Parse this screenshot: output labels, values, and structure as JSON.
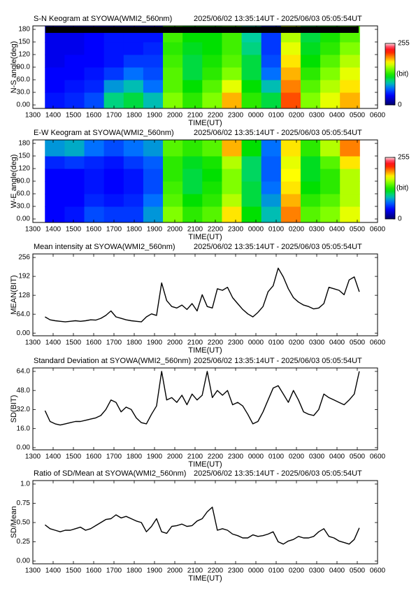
{
  "chart_data": [
    {
      "type": "heatmap",
      "title": "S-N Keogram at SYOWA(WMI2_560nm)",
      "subtitle": "2025/06/02 13:35:14UT - 2025/06/03 05:05:54UT",
      "x_label": "TIME(UT)",
      "y_label": "N-S angle(deg)",
      "xlim": [
        13,
        30
      ],
      "xticks": [
        {
          "value": 13,
          "label": "1300"
        },
        {
          "value": 14,
          "label": "1400"
        },
        {
          "value": 15,
          "label": "1500"
        },
        {
          "value": 16,
          "label": "1600"
        },
        {
          "value": 17,
          "label": "1700"
        },
        {
          "value": 18,
          "label": "1800"
        },
        {
          "value": 19,
          "label": "1900"
        },
        {
          "value": 20,
          "label": "2000"
        },
        {
          "value": 21,
          "label": "2100"
        },
        {
          "value": 22,
          "label": "2200"
        },
        {
          "value": 23,
          "label": "2300"
        },
        {
          "value": 24,
          "label": "0000"
        },
        {
          "value": 25,
          "label": "0100"
        },
        {
          "value": 26,
          "label": "0200"
        },
        {
          "value": 27,
          "label": "0300"
        },
        {
          "value": 28,
          "label": "0400"
        },
        {
          "value": 29,
          "label": "0500"
        },
        {
          "value": 30,
          "label": "0600"
        }
      ],
      "ylim": [
        -8.3,
        188.3
      ],
      "yticks": [
        {
          "value": 0,
          "label": "0.00"
        },
        {
          "value": 30,
          "label": "30.0"
        },
        {
          "value": 60,
          "label": "60.0"
        },
        {
          "value": 90,
          "label": "90.0"
        },
        120,
        150,
        180
      ],
      "x": [
        14.08,
        15.05,
        16.02,
        16.99,
        17.96,
        18.93,
        19.9,
        20.87,
        21.84,
        22.81,
        23.78,
        24.75,
        25.72,
        26.69,
        27.66,
        28.63
      ],
      "y": [
        15,
        45,
        75,
        105,
        135,
        165
      ],
      "z": [
        [
          45,
          50,
          60,
          100,
          110,
          90,
          150,
          130,
          150,
          190,
          130,
          110,
          210,
          150,
          170,
          190
        ],
        [
          40,
          45,
          50,
          80,
          90,
          70,
          140,
          120,
          140,
          170,
          120,
          90,
          200,
          140,
          160,
          180
        ],
        [
          40,
          40,
          45,
          55,
          70,
          60,
          140,
          110,
          130,
          150,
          110,
          70,
          190,
          130,
          150,
          170
        ],
        [
          35,
          40,
          40,
          45,
          55,
          55,
          135,
          110,
          125,
          140,
          110,
          60,
          180,
          120,
          140,
          160
        ],
        [
          35,
          35,
          40,
          45,
          45,
          50,
          130,
          115,
          120,
          135,
          100,
          55,
          170,
          115,
          130,
          150
        ],
        [
          35,
          35,
          40,
          45,
          45,
          45,
          135,
          120,
          120,
          135,
          95,
          55,
          160,
          110,
          125,
          140
        ]
      ],
      "zlim": [
        0,
        255
      ],
      "zticks": [
        0,
        255
      ],
      "colorbar_label": "(bit)"
    },
    {
      "type": "heatmap",
      "title": "E-W Keogram at SYOWA(WMI2_560nm)",
      "subtitle": "2025/06/02 13:35:14UT - 2025/06/03 05:05:54UT",
      "x_label": "TIME(UT)",
      "y_label": "W-E angle(deg)",
      "xlim": [
        13,
        30
      ],
      "xticks": [
        {
          "value": 13,
          "label": "1300"
        },
        {
          "value": 14,
          "label": "1400"
        },
        {
          "value": 15,
          "label": "1500"
        },
        {
          "value": 16,
          "label": "1600"
        },
        {
          "value": 17,
          "label": "1700"
        },
        {
          "value": 18,
          "label": "1800"
        },
        {
          "value": 19,
          "label": "1900"
        },
        {
          "value": 20,
          "label": "2000"
        },
        {
          "value": 21,
          "label": "2100"
        },
        {
          "value": 22,
          "label": "2200"
        },
        {
          "value": 23,
          "label": "2300"
        },
        {
          "value": 24,
          "label": "0000"
        },
        {
          "value": 25,
          "label": "0100"
        },
        {
          "value": 26,
          "label": "0200"
        },
        {
          "value": 27,
          "label": "0300"
        },
        {
          "value": 28,
          "label": "0400"
        },
        {
          "value": 29,
          "label": "0500"
        },
        {
          "value": 30,
          "label": "0600"
        }
      ],
      "ylim": [
        -8.3,
        188.3
      ],
      "yticks": [
        {
          "value": 0,
          "label": "0.00"
        },
        {
          "value": 30,
          "label": "30.0"
        },
        {
          "value": 60,
          "label": "60.0"
        },
        {
          "value": 90,
          "label": "90.0"
        },
        120,
        150,
        180
      ],
      "x": [
        14.08,
        15.05,
        16.02,
        16.99,
        17.96,
        18.93,
        19.9,
        20.87,
        21.84,
        22.81,
        23.78,
        24.75,
        25.72,
        26.69,
        27.66,
        28.63
      ],
      "y": [
        15,
        45,
        75,
        105,
        135,
        165
      ],
      "z": [
        [
          40,
          45,
          60,
          55,
          55,
          80,
          150,
          130,
          140,
          180,
          120,
          90,
          200,
          140,
          150,
          170
        ],
        [
          40,
          40,
          50,
          45,
          50,
          70,
          140,
          120,
          130,
          160,
          110,
          80,
          190,
          130,
          140,
          160
        ],
        [
          40,
          40,
          45,
          40,
          45,
          60,
          135,
          110,
          125,
          150,
          110,
          70,
          180,
          120,
          130,
          160
        ],
        [
          40,
          40,
          45,
          40,
          45,
          60,
          130,
          110,
          120,
          150,
          105,
          65,
          175,
          115,
          130,
          160
        ],
        [
          50,
          55,
          50,
          45,
          55,
          65,
          130,
          115,
          125,
          160,
          105,
          65,
          170,
          115,
          140,
          180
        ],
        [
          80,
          85,
          70,
          60,
          70,
          80,
          140,
          130,
          140,
          190,
          120,
          70,
          180,
          130,
          160,
          200
        ]
      ],
      "zlim": [
        0,
        255
      ],
      "zticks": [
        0,
        255
      ],
      "colorbar_label": "(bit)"
    },
    {
      "type": "line",
      "title": "Mean intensity at SYOWA(WMI2_560nm)",
      "subtitle": "2025/06/02 13:35:14UT - 2025/06/03 05:05:54UT",
      "x_label": "TIME(UT)",
      "y_label": "MEAN(BIT)",
      "color": "#000000",
      "xlim": [
        13,
        30
      ],
      "xticks": [
        {
          "value": 13,
          "label": "1300"
        },
        {
          "value": 14,
          "label": "1400"
        },
        {
          "value": 15,
          "label": "1500"
        },
        {
          "value": 16,
          "label": "1600"
        },
        {
          "value": 17,
          "label": "1700"
        },
        {
          "value": 18,
          "label": "1800"
        },
        {
          "value": 19,
          "label": "1900"
        },
        {
          "value": 20,
          "label": "2000"
        },
        {
          "value": 21,
          "label": "2100"
        },
        {
          "value": 22,
          "label": "2200"
        },
        {
          "value": 23,
          "label": "2300"
        },
        {
          "value": 24,
          "label": "0000"
        },
        {
          "value": 25,
          "label": "0100"
        },
        {
          "value": 26,
          "label": "0200"
        },
        {
          "value": 27,
          "label": "0300"
        },
        {
          "value": 28,
          "label": "0400"
        },
        {
          "value": 29,
          "label": "0500"
        },
        {
          "value": 30,
          "label": "0600"
        }
      ],
      "ylim": [
        -9,
        268
      ],
      "yticks": [
        {
          "value": 0,
          "label": "0.00"
        },
        {
          "value": 64,
          "label": "64.0"
        },
        128,
        192,
        256
      ],
      "x": [
        13.6,
        13.85,
        14.1,
        14.35,
        14.6,
        14.85,
        15.1,
        15.35,
        15.6,
        15.85,
        16.1,
        16.35,
        16.6,
        16.85,
        17.1,
        17.35,
        17.6,
        17.85,
        18.1,
        18.35,
        18.6,
        18.85,
        19.1,
        19.35,
        19.6,
        19.85,
        20.1,
        20.35,
        20.6,
        20.85,
        21.1,
        21.35,
        21.6,
        21.85,
        22.1,
        22.35,
        22.6,
        22.85,
        23.1,
        23.35,
        23.6,
        23.85,
        24.1,
        24.35,
        24.6,
        24.85,
        25.1,
        25.35,
        25.6,
        25.85,
        26.1,
        26.35,
        26.6,
        26.85,
        27.1,
        27.35,
        27.6,
        27.85,
        28.1,
        28.35,
        28.6,
        28.85,
        29.1
      ],
      "values": [
        55,
        45,
        42,
        40,
        38,
        40,
        42,
        40,
        42,
        45,
        44,
        50,
        60,
        75,
        55,
        50,
        45,
        42,
        40,
        38,
        55,
        65,
        60,
        170,
        110,
        90,
        85,
        95,
        80,
        100,
        75,
        130,
        90,
        85,
        150,
        145,
        155,
        120,
        100,
        80,
        65,
        55,
        70,
        90,
        140,
        160,
        220,
        190,
        150,
        120,
        105,
        95,
        90,
        82,
        85,
        100,
        155,
        150,
        145,
        130,
        180,
        190,
        140
      ]
    },
    {
      "type": "line",
      "title": "Standard Deviation at SYOWA(WMI2_560nm)",
      "subtitle": "2025/06/02 13:35:14UT - 2025/06/03 05:05:54UT",
      "x_label": "TIME(UT)",
      "y_label": "SD(BIT)",
      "color": "#000000",
      "xlim": [
        13,
        30
      ],
      "xticks": [
        {
          "value": 13,
          "label": "1300"
        },
        {
          "value": 14,
          "label": "1400"
        },
        {
          "value": 15,
          "label": "1500"
        },
        {
          "value": 16,
          "label": "1600"
        },
        {
          "value": 17,
          "label": "1700"
        },
        {
          "value": 18,
          "label": "1800"
        },
        {
          "value": 19,
          "label": "1900"
        },
        {
          "value": 20,
          "label": "2000"
        },
        {
          "value": 21,
          "label": "2100"
        },
        {
          "value": 22,
          "label": "2200"
        },
        {
          "value": 23,
          "label": "2300"
        },
        {
          "value": 24,
          "label": "0000"
        },
        {
          "value": 25,
          "label": "0100"
        },
        {
          "value": 26,
          "label": "0200"
        },
        {
          "value": 27,
          "label": "0300"
        },
        {
          "value": 28,
          "label": "0400"
        },
        {
          "value": 29,
          "label": "0500"
        },
        {
          "value": 30,
          "label": "0600"
        }
      ],
      "ylim": [
        -1.8,
        66.9
      ],
      "yticks": [
        {
          "value": 0,
          "label": "0.00"
        },
        {
          "value": 16,
          "label": "16.0"
        },
        {
          "value": 32,
          "label": "32.0"
        },
        {
          "value": 48,
          "label": "48.0"
        },
        {
          "value": 64,
          "label": "64.0"
        }
      ],
      "x": [
        13.6,
        13.85,
        14.1,
        14.35,
        14.6,
        14.85,
        15.1,
        15.35,
        15.6,
        15.85,
        16.1,
        16.35,
        16.6,
        16.85,
        17.1,
        17.35,
        17.6,
        17.85,
        18.1,
        18.35,
        18.6,
        18.85,
        19.1,
        19.35,
        19.6,
        19.85,
        20.1,
        20.35,
        20.6,
        20.85,
        21.1,
        21.35,
        21.6,
        21.85,
        22.1,
        22.35,
        22.6,
        22.85,
        23.1,
        23.35,
        23.6,
        23.85,
        24.1,
        24.35,
        24.6,
        24.85,
        25.1,
        25.35,
        25.6,
        25.85,
        26.1,
        26.35,
        26.6,
        26.85,
        27.1,
        27.35,
        27.6,
        27.85,
        28.1,
        28.35,
        28.6,
        28.85,
        29.1
      ],
      "values": [
        31,
        22,
        20,
        19,
        20,
        21,
        22,
        22,
        23,
        24,
        25,
        27,
        32,
        40,
        38,
        30,
        34,
        32,
        25,
        21,
        20,
        28,
        35,
        64,
        40,
        42,
        38,
        44,
        36,
        45,
        40,
        44,
        64,
        42,
        48,
        44,
        48,
        36,
        38,
        35,
        28,
        20,
        22,
        30,
        40,
        50,
        52,
        45,
        38,
        48,
        40,
        30,
        28,
        27,
        32,
        45,
        42,
        40,
        38,
        36,
        40,
        45,
        64
      ]
    },
    {
      "type": "line",
      "title": "Ratio of SD/Mean at SYOWA(WMI2_560nm)",
      "subtitle": "2025/06/02 13:35:14UT - 2025/06/03 05:05:54UT",
      "x_label": "TIME(UT)",
      "y_label": "SD/Mean",
      "color": "#000000",
      "xlim": [
        13,
        30
      ],
      "xticks": [
        {
          "value": 13,
          "label": "1300"
        },
        {
          "value": 14,
          "label": "1400"
        },
        {
          "value": 15,
          "label": "1500"
        },
        {
          "value": 16,
          "label": "1600"
        },
        {
          "value": 17,
          "label": "1700"
        },
        {
          "value": 18,
          "label": "1800"
        },
        {
          "value": 19,
          "label": "1900"
        },
        {
          "value": 20,
          "label": "2000"
        },
        {
          "value": 21,
          "label": "2100"
        },
        {
          "value": 22,
          "label": "2200"
        },
        {
          "value": 23,
          "label": "2300"
        },
        {
          "value": 24,
          "label": "0000"
        },
        {
          "value": 25,
          "label": "0100"
        },
        {
          "value": 26,
          "label": "0200"
        },
        {
          "value": 27,
          "label": "0300"
        },
        {
          "value": 28,
          "label": "0400"
        },
        {
          "value": 29,
          "label": "0500"
        },
        {
          "value": 30,
          "label": "0600"
        }
      ],
      "ylim": [
        -0.036,
        1.045
      ],
      "yticks": [
        {
          "value": 0,
          "label": "0.00"
        },
        0.25,
        {
          "value": 0.5,
          "label": "0.50"
        },
        0.75,
        {
          "value": 1,
          "label": "1.0"
        }
      ],
      "x": [
        13.6,
        13.85,
        14.1,
        14.35,
        14.6,
        14.85,
        15.1,
        15.35,
        15.6,
        15.85,
        16.1,
        16.35,
        16.6,
        16.85,
        17.1,
        17.35,
        17.6,
        17.85,
        18.1,
        18.35,
        18.6,
        18.85,
        19.1,
        19.35,
        19.6,
        19.85,
        20.1,
        20.35,
        20.6,
        20.85,
        21.1,
        21.35,
        21.6,
        21.85,
        22.1,
        22.35,
        22.6,
        22.85,
        23.1,
        23.35,
        23.6,
        23.85,
        24.1,
        24.35,
        24.6,
        24.85,
        25.1,
        25.35,
        25.6,
        25.85,
        26.1,
        26.35,
        26.6,
        26.85,
        27.1,
        27.35,
        27.6,
        27.85,
        28.1,
        28.35,
        28.6,
        28.85,
        29.1
      ],
      "values": [
        0.47,
        0.42,
        0.4,
        0.38,
        0.4,
        0.4,
        0.42,
        0.44,
        0.4,
        0.42,
        0.46,
        0.5,
        0.54,
        0.55,
        0.6,
        0.56,
        0.58,
        0.55,
        0.52,
        0.5,
        0.38,
        0.45,
        0.55,
        0.38,
        0.36,
        0.45,
        0.46,
        0.48,
        0.45,
        0.46,
        0.52,
        0.55,
        0.64,
        0.7,
        0.4,
        0.42,
        0.4,
        0.35,
        0.33,
        0.3,
        0.3,
        0.34,
        0.32,
        0.33,
        0.35,
        0.38,
        0.25,
        0.22,
        0.26,
        0.28,
        0.32,
        0.3,
        0.3,
        0.32,
        0.38,
        0.42,
        0.32,
        0.3,
        0.26,
        0.24,
        0.22,
        0.28,
        0.43
      ]
    }
  ]
}
